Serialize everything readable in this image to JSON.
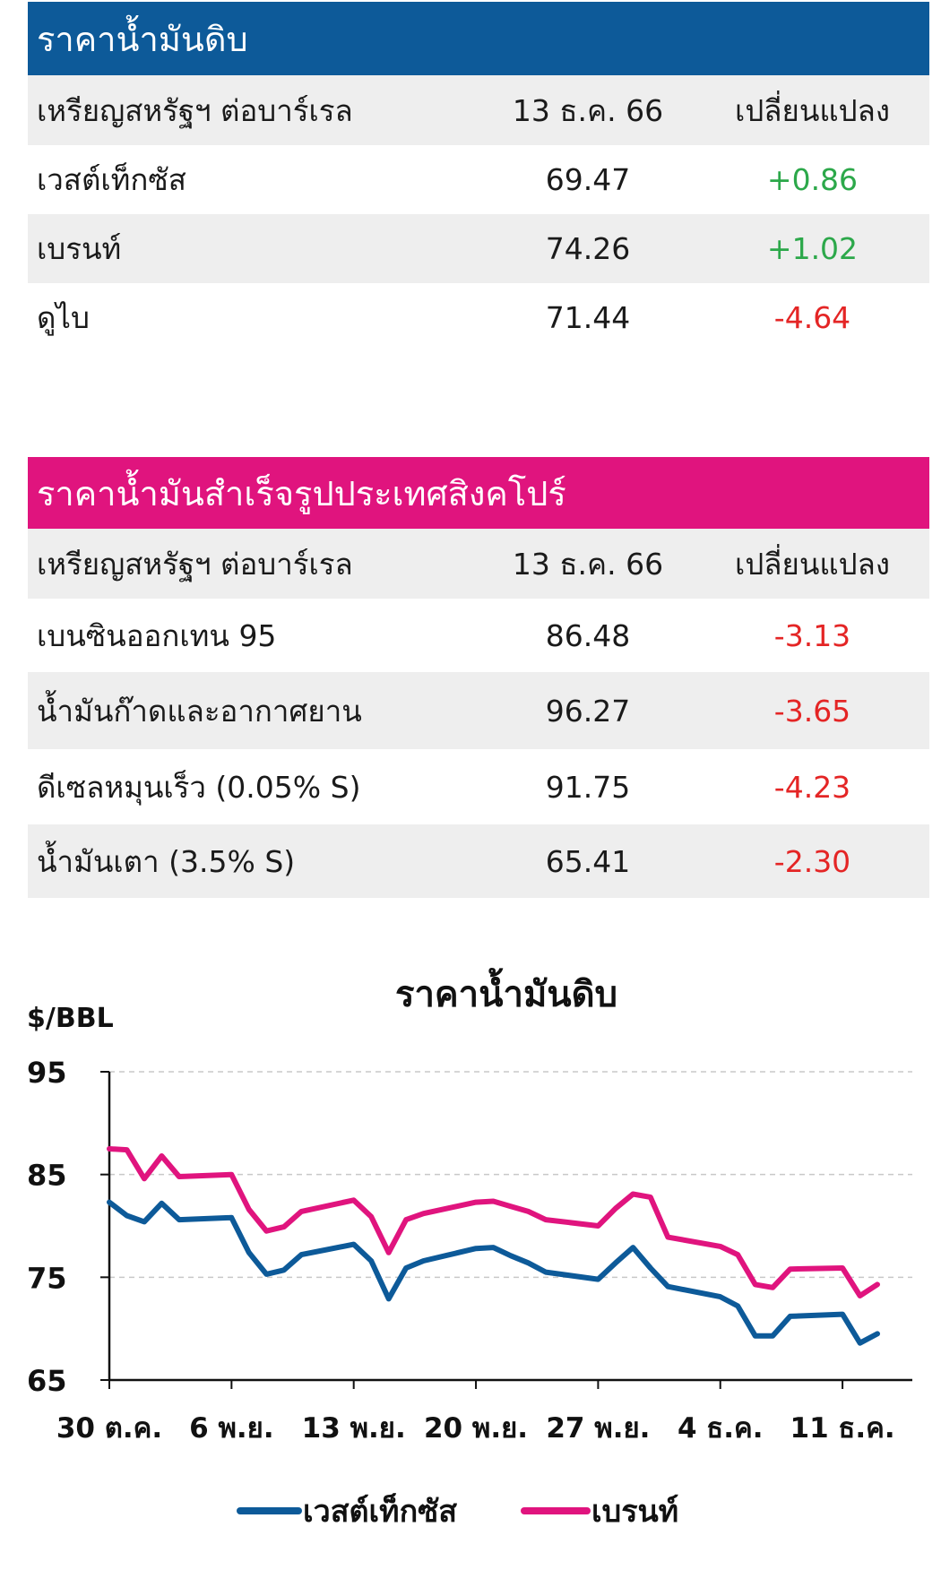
{
  "table1": {
    "title": "ราคาน้ำมันดิบ",
    "header": {
      "label": "เหรียญสหรัฐฯ ต่อบาร์เรล",
      "date": "13 ธ.ค. 66",
      "change": "เปลี่ยนแปลง"
    },
    "rows": [
      {
        "name": "เวสต์เท็กซัส",
        "price": "69.47",
        "change": "+0.86",
        "dir": "up"
      },
      {
        "name": "เบรนท์",
        "price": "74.26",
        "change": "+1.02",
        "dir": "up"
      },
      {
        "name": "ดูไบ",
        "price": "71.44",
        "change": "-4.64",
        "dir": "down"
      }
    ]
  },
  "table2": {
    "title": "ราคาน้ำมันสำเร็จรูปประเทศสิงคโปร์",
    "header": {
      "label": "เหรียญสหรัฐฯ ต่อบาร์เรล",
      "date": "13 ธ.ค. 66",
      "change": "เปลี่ยนแปลง"
    },
    "rows": [
      {
        "name": "เบนซินออกเทน 95",
        "price": "86.48",
        "change": "-3.13",
        "dir": "down"
      },
      {
        "name": "น้ำมันก๊าดและอากาศยาน",
        "price": "96.27",
        "change": "-3.65",
        "dir": "down"
      },
      {
        "name": "ดีเซลหมุนเร็ว (0.05% S)",
        "price": "91.75",
        "change": "-4.23",
        "dir": "down"
      },
      {
        "name": "น้ำมันเตา (3.5% S)",
        "price": "65.41",
        "change": "-2.30",
        "dir": "down"
      }
    ]
  },
  "colors": {
    "blue": "#0d5a99",
    "pink": "#e0147e",
    "up": "#2ca84a",
    "down": "#e42525"
  },
  "chart_data": {
    "type": "line",
    "title": "ราคาน้ำมันดิบ",
    "ylabel": "$/BBL",
    "ylim": [
      65,
      95
    ],
    "yticks": [
      65,
      75,
      85,
      95
    ],
    "grid": "dashed horizontal",
    "xticks": [
      "30 ต.ค.",
      "6 พ.ย.",
      "13 พ.ย.",
      "20 พ.ย.",
      "27 พ.ย.",
      "4 ธ.ค.",
      "11 ธ.ค."
    ],
    "x": [
      0,
      1,
      2,
      3,
      4,
      7,
      8,
      9,
      10,
      11,
      14,
      15,
      16,
      17,
      18,
      21,
      22,
      23,
      24,
      25,
      28,
      29,
      30,
      31,
      32,
      35,
      36,
      37,
      38,
      39,
      42,
      43,
      44
    ],
    "legend_position": "bottom",
    "series": [
      {
        "name": "เวสต์เท็กซัส",
        "color": "#0d5a99",
        "values": [
          82.3,
          81.0,
          80.4,
          82.2,
          80.6,
          80.8,
          77.4,
          75.3,
          75.7,
          77.2,
          78.2,
          76.6,
          72.9,
          75.9,
          76.6,
          77.8,
          77.9,
          77.1,
          76.4,
          75.5,
          74.8,
          76.4,
          77.9,
          75.9,
          74.1,
          73.1,
          72.2,
          69.3,
          69.3,
          71.2,
          71.4,
          68.6,
          69.5
        ]
      },
      {
        "name": "เบรนท์",
        "color": "#e0147e",
        "values": [
          87.5,
          87.4,
          84.6,
          86.8,
          84.8,
          85.0,
          81.6,
          79.5,
          79.9,
          81.4,
          82.5,
          80.9,
          77.4,
          80.6,
          81.2,
          82.3,
          82.4,
          81.9,
          81.4,
          80.6,
          80.0,
          81.7,
          83.1,
          82.8,
          78.9,
          78.0,
          77.2,
          74.3,
          74.0,
          75.8,
          75.9,
          73.2,
          74.3
        ]
      }
    ]
  }
}
